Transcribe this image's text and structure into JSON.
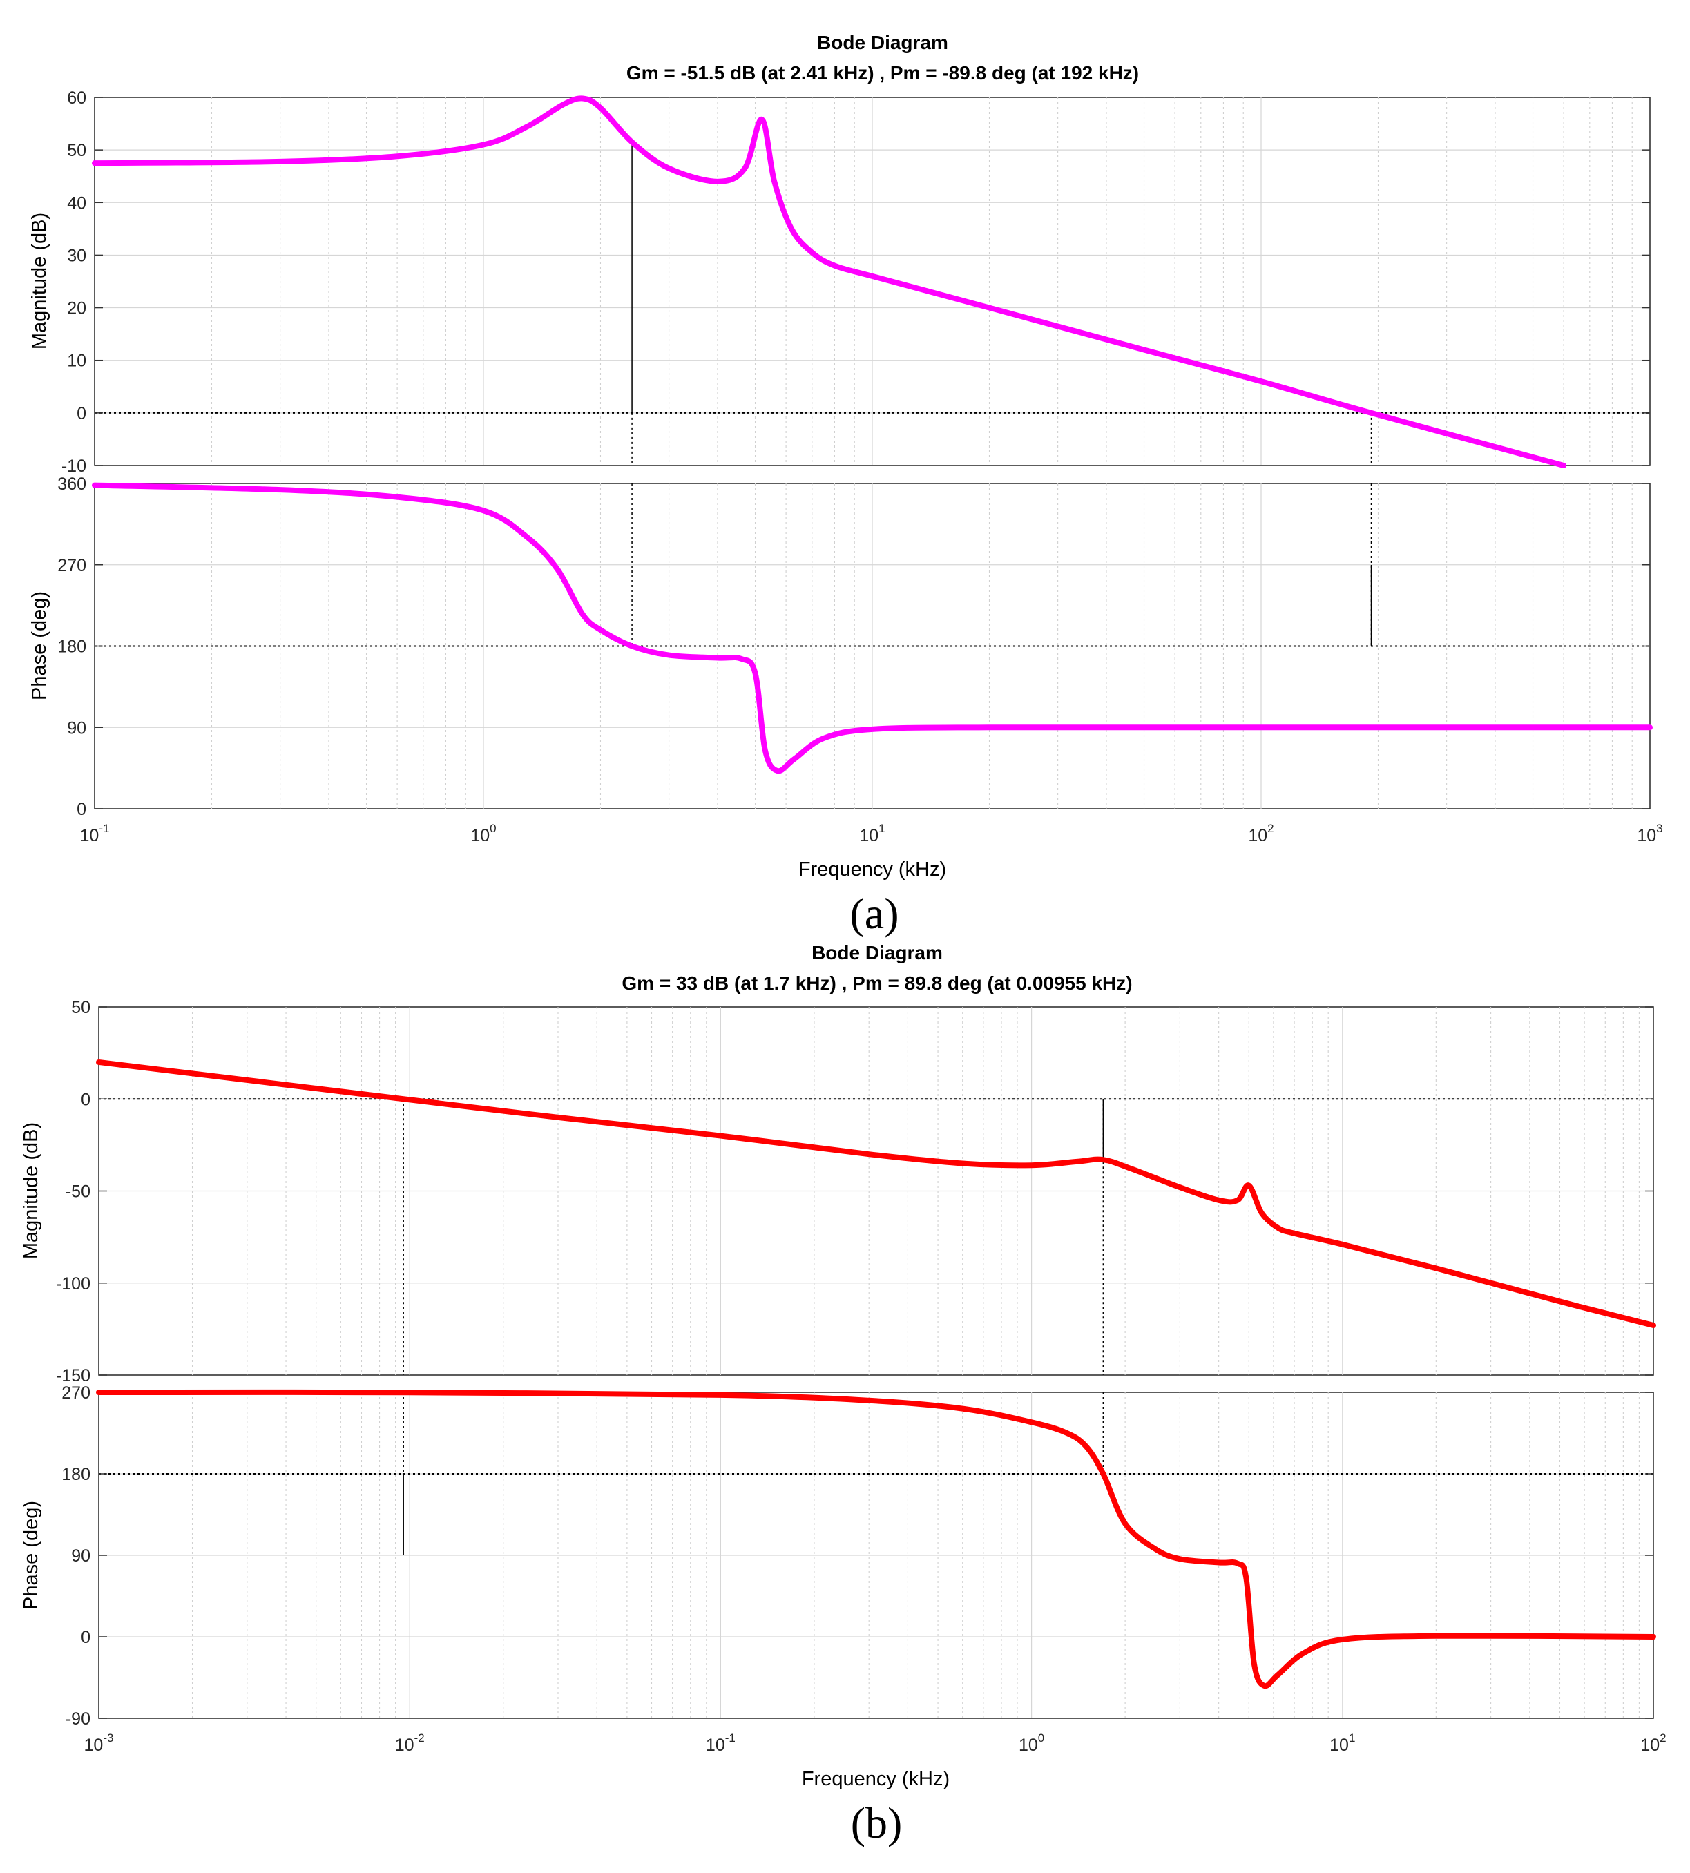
{
  "chart_data": [
    {
      "type": "line",
      "panel": "(a)",
      "title": "Bode Diagram",
      "subtitle": "Gm = -51.5 dB (at 2.41 kHz) ,  Pm = -89.8 deg (at 192 kHz)",
      "xlabel": "Frequency  (kHz)",
      "xscale": "log",
      "xlim": [
        0.1,
        1000
      ],
      "x_ticks": [
        {
          "base": "10",
          "exp": "-1"
        },
        {
          "base": "10",
          "exp": "0"
        },
        {
          "base": "10",
          "exp": "1"
        },
        {
          "base": "10",
          "exp": "2"
        },
        {
          "base": "10",
          "exp": "3"
        }
      ],
      "color": "#ff00ff",
      "caption": "(a)",
      "gain_margin": {
        "value_db": -51.5,
        "freq_khz": 2.41
      },
      "phase_margin": {
        "value_deg": -89.8,
        "freq_khz": 192
      },
      "magnitude": {
        "ylabel": "Magnitude (dB)",
        "ylim": [
          -10,
          60
        ],
        "y_ticks": [
          "60",
          "50",
          "40",
          "30",
          "20",
          "10",
          "0",
          "-10"
        ],
        "reference_level": 0,
        "series": {
          "name": "Magnitude",
          "x": [
            0.1,
            0.3,
            0.6,
            1.0,
            1.3,
            1.6,
            1.8,
            2.0,
            2.41,
            3.0,
            4.0,
            4.7,
            5.2,
            5.6,
            6.2,
            7.0,
            8.0,
            10,
            20,
            50,
            100,
            192,
            600
          ],
          "y": [
            47.5,
            47.8,
            48.8,
            51,
            54.5,
            58.6,
            59.8,
            58,
            51.5,
            46.5,
            44,
            46.5,
            55.8,
            44,
            35,
            30.5,
            28,
            26,
            20,
            12,
            6,
            0,
            -10
          ]
        }
      },
      "phase": {
        "ylabel": "Phase (deg)",
        "ylim": [
          0,
          360
        ],
        "y_ticks": [
          "360",
          "270",
          "180",
          "90",
          "0"
        ],
        "reference_level": 180,
        "series": {
          "name": "Phase",
          "x": [
            0.1,
            0.3,
            0.6,
            1.0,
            1.3,
            1.55,
            1.8,
            2.0,
            2.41,
            3.0,
            4.0,
            4.6,
            5.0,
            5.3,
            5.7,
            6.3,
            7.5,
            10,
            20,
            100,
            1000
          ],
          "y": [
            358,
            353,
            345,
            330,
            300,
            265,
            215,
            198,
            180,
            170,
            167,
            166,
            150,
            65,
            42,
            55,
            78,
            88,
            90,
            90,
            90
          ]
        }
      }
    },
    {
      "type": "line",
      "panel": "(b)",
      "title": "Bode Diagram",
      "subtitle": "Gm = 33 dB (at 1.7 kHz) ,  Pm = 89.8 deg (at 0.00955 kHz)",
      "xlabel": "Frequency  (kHz)",
      "xscale": "log",
      "xlim": [
        0.001,
        100
      ],
      "x_ticks": [
        {
          "base": "10",
          "exp": "-3"
        },
        {
          "base": "10",
          "exp": "-2"
        },
        {
          "base": "10",
          "exp": "-1"
        },
        {
          "base": "10",
          "exp": "0"
        },
        {
          "base": "10",
          "exp": "1"
        },
        {
          "base": "10",
          "exp": "2"
        }
      ],
      "color": "#ff0000",
      "caption": "(b)",
      "gain_margin": {
        "value_db": 33,
        "freq_khz": 1.7
      },
      "phase_margin": {
        "value_deg": 89.8,
        "freq_khz": 0.00955
      },
      "magnitude": {
        "ylabel": "Magnitude (dB)",
        "ylim": [
          -150,
          50
        ],
        "y_ticks": [
          "50",
          "0",
          "-50",
          "-100",
          "-150"
        ],
        "reference_level": 0,
        "series": {
          "name": "Magnitude",
          "x": [
            0.001,
            0.00955,
            0.03,
            0.1,
            0.3,
            0.6,
            1.0,
            1.4,
            1.7,
            2.1,
            3.0,
            4.0,
            4.6,
            5.0,
            5.5,
            6.2,
            7.0,
            10,
            20,
            50,
            100
          ],
          "y": [
            20,
            0,
            -10,
            -20,
            -30,
            -35,
            -36,
            -34,
            -33,
            -38,
            -48,
            -55,
            -55,
            -47,
            -62,
            -70,
            -73,
            -79,
            -92,
            -110,
            -123
          ]
        }
      },
      "phase": {
        "ylabel": "Phase (deg)",
        "ylim": [
          -90,
          270
        ],
        "y_ticks": [
          "270",
          "180",
          "90",
          "0",
          "-90"
        ],
        "reference_level": 180,
        "series": {
          "name": "Phase",
          "x": [
            0.001,
            0.01,
            0.1,
            0.3,
            0.6,
            1.0,
            1.3,
            1.5,
            1.7,
            2.0,
            2.5,
            3.0,
            4.0,
            4.6,
            4.9,
            5.2,
            5.6,
            6.2,
            7.5,
            10,
            20,
            100
          ],
          "y": [
            270,
            269.8,
            267,
            261,
            252,
            237,
            225,
            210,
            180,
            125,
            97,
            86,
            82,
            81,
            65,
            -30,
            -54,
            -42,
            -18,
            -3,
            1,
            0
          ]
        }
      }
    }
  ]
}
